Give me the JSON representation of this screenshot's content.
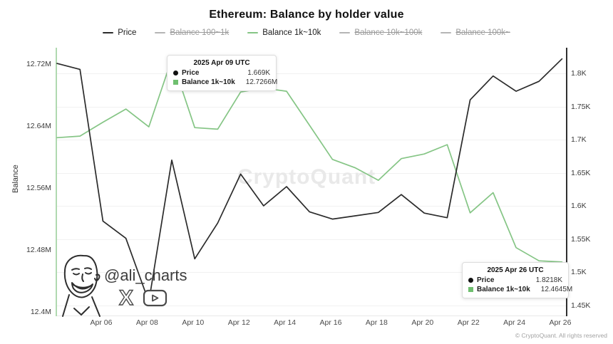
{
  "title": "Ethereum: Balance by holder value",
  "watermark": "CryptoQuant",
  "handle": "@ali_charts",
  "footer": "© CryptoQuant. All rights reserved",
  "colors": {
    "price_line": "#2b2b2b",
    "balance_line": "#85c585",
    "inactive_legend": "#b5b5b5",
    "grid": "#f1f1f1",
    "tooltip_square": "#6fbf6f"
  },
  "legend": [
    {
      "label": "Price",
      "color": "#2b2b2b",
      "active": true
    },
    {
      "label": "Balance 100~1k",
      "color": "#b5b5b5",
      "active": false
    },
    {
      "label": "Balance 1k~10k",
      "color": "#85c585",
      "active": true
    },
    {
      "label": "Balance 10k~100k",
      "color": "#b5b5b5",
      "active": false
    },
    {
      "label": "Balance 100k~",
      "color": "#b5b5b5",
      "active": false
    }
  ],
  "left_axis": {
    "title": "Balance",
    "ticks": [
      "12.72M",
      "12.64M",
      "12.56M",
      "12.48M",
      "12.4M"
    ]
  },
  "right_axis": {
    "ticks": [
      "1.8K",
      "1.75K",
      "1.7K",
      "1.65K",
      "1.6K",
      "1.55K",
      "1.5K",
      "1.45K"
    ]
  },
  "x_axis": {
    "ticks": [
      "Apr 06",
      "Apr 08",
      "Apr 10",
      "Apr 12",
      "Apr 14",
      "Apr 16",
      "Apr 18",
      "Apr 20",
      "Apr 22",
      "Apr 24",
      "Apr 26"
    ]
  },
  "tooltips": [
    {
      "title": "2025 Apr 09 UTC",
      "rows": [
        {
          "series": "Price",
          "label": "Price",
          "value": "1.669K"
        },
        {
          "series": "Balance 1k~10k",
          "label": "Balance 1k~10k",
          "value": "12.7266M"
        }
      ]
    },
    {
      "title": "2025 Apr 26 UTC",
      "rows": [
        {
          "series": "Price",
          "label": "Price",
          "value": "1.8218K"
        },
        {
          "series": "Balance 1k~10k",
          "label": "Balance 1k~10k",
          "value": "12.4645M"
        }
      ]
    }
  ],
  "chart_data": {
    "type": "line",
    "x": [
      "Apr 04",
      "Apr 05",
      "Apr 06",
      "Apr 07",
      "Apr 08",
      "Apr 09",
      "Apr 10",
      "Apr 11",
      "Apr 12",
      "Apr 13",
      "Apr 14",
      "Apr 15",
      "Apr 16",
      "Apr 17",
      "Apr 18",
      "Apr 19",
      "Apr 20",
      "Apr 21",
      "Apr 22",
      "Apr 23",
      "Apr 24",
      "Apr 25",
      "Apr 26"
    ],
    "series": [
      {
        "name": "Price",
        "axis": "right",
        "unit": "K",
        "color": "#2b2b2b",
        "values": [
          1.815,
          1.806,
          1.577,
          1.551,
          1.455,
          1.669,
          1.52,
          1.574,
          1.648,
          1.6,
          1.629,
          1.591,
          1.58,
          1.585,
          1.59,
          1.617,
          1.589,
          1.582,
          1.76,
          1.796,
          1.773,
          1.788,
          1.8218
        ]
      },
      {
        "name": "Balance 1k~10k",
        "axis": "left",
        "unit": "M",
        "color": "#85c585",
        "values": [
          12.625,
          12.627,
          12.645,
          12.662,
          12.639,
          12.7266,
          12.638,
          12.636,
          12.684,
          12.689,
          12.685,
          12.641,
          12.597,
          12.586,
          12.57,
          12.598,
          12.604,
          12.616,
          12.528,
          12.554,
          12.483,
          12.466,
          12.4645
        ]
      }
    ],
    "left_ylabel": "Balance",
    "left_ylim": [
      12.395,
      12.741
    ],
    "right_ylim": [
      1.434,
      1.839
    ],
    "grid": "horizontal-faint",
    "legend_position": "top"
  }
}
